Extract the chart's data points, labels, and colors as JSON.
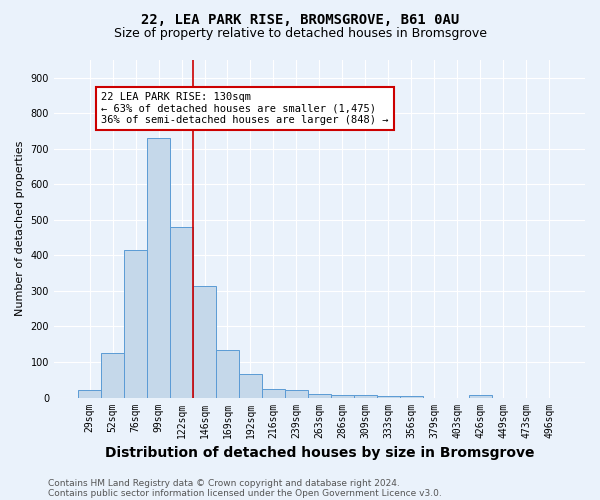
{
  "title_line1": "22, LEA PARK RISE, BROMSGROVE, B61 0AU",
  "title_line2": "Size of property relative to detached houses in Bromsgrove",
  "xlabel": "Distribution of detached houses by size in Bromsgrove",
  "ylabel": "Number of detached properties",
  "bar_labels": [
    "29sqm",
    "52sqm",
    "76sqm",
    "99sqm",
    "122sqm",
    "146sqm",
    "169sqm",
    "192sqm",
    "216sqm",
    "239sqm",
    "263sqm",
    "286sqm",
    "309sqm",
    "333sqm",
    "356sqm",
    "379sqm",
    "403sqm",
    "426sqm",
    "449sqm",
    "473sqm",
    "496sqm"
  ],
  "bar_values": [
    20,
    125,
    415,
    730,
    480,
    315,
    135,
    65,
    25,
    22,
    10,
    8,
    8,
    5,
    5,
    0,
    0,
    8,
    0,
    0,
    0
  ],
  "bar_color": "#c5d8ea",
  "bar_edge_color": "#5b9bd5",
  "vline_x_index": 4.5,
  "vline_color": "#cc0000",
  "annotation_text": "22 LEA PARK RISE: 130sqm\n← 63% of detached houses are smaller (1,475)\n36% of semi-detached houses are larger (848) →",
  "annotation_box_color": "white",
  "annotation_box_edge": "#cc0000",
  "ylim": [
    0,
    950
  ],
  "yticks": [
    0,
    100,
    200,
    300,
    400,
    500,
    600,
    700,
    800,
    900
  ],
  "footer_line1": "Contains HM Land Registry data © Crown copyright and database right 2024.",
  "footer_line2": "Contains public sector information licensed under the Open Government Licence v3.0.",
  "background_color": "#eaf2fb",
  "plot_bg_color": "#eaf2fb",
  "grid_color": "white",
  "title_fontsize": 10,
  "subtitle_fontsize": 9,
  "xlabel_fontsize": 10,
  "ylabel_fontsize": 8,
  "tick_fontsize": 7,
  "footer_fontsize": 6.5,
  "annotation_fontsize": 7.5
}
